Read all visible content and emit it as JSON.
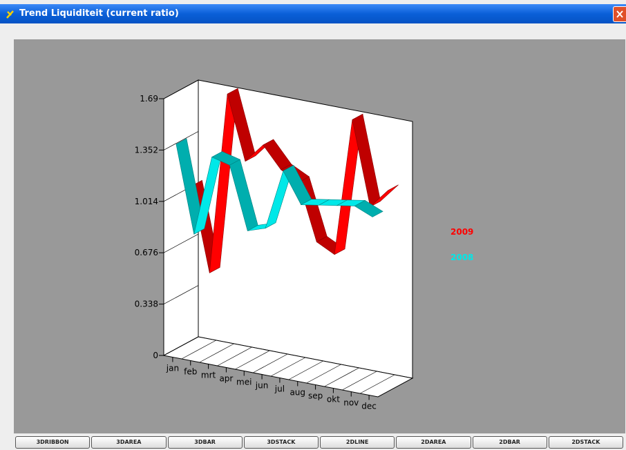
{
  "window": {
    "title": "Trend Liquiditeit (current ratio)"
  },
  "buttons": [
    "3DRIBBON",
    "3DAREA",
    "3DBAR",
    "3DSTACK",
    "2DLINE",
    "2DAREA",
    "2DBAR",
    "2DSTACK"
  ],
  "chart_data": {
    "type": "ribbon3d",
    "categories": [
      "jan",
      "feb",
      "mrt",
      "apr",
      "mei",
      "jun",
      "jul",
      "aug",
      "sep",
      "okt",
      "nov",
      "dec"
    ],
    "series": [
      {
        "name": "2009",
        "color": "#ff0000",
        "values": [
          1.06,
          0.51,
          1.71,
          1.29,
          1.42,
          1.28,
          1.22,
          0.85,
          0.79,
          1.7,
          1.15,
          1.28
        ]
      },
      {
        "name": "2008",
        "color": "#00e8e8",
        "values": [
          1.39,
          0.82,
          1.35,
          1.32,
          0.91,
          0.95,
          1.35,
          1.15,
          1.17,
          1.19,
          1.21,
          1.16
        ]
      }
    ],
    "ylim": [
      0,
      1.69
    ],
    "yticks": [
      0,
      0.338,
      0.676,
      1.014,
      1.352,
      1.69
    ],
    "legend": "right"
  }
}
